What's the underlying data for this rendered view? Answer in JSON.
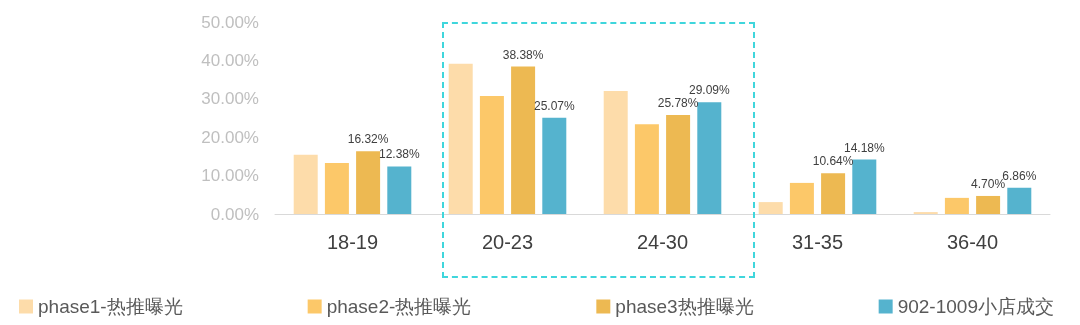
{
  "chart_data": {
    "type": "bar",
    "categories": [
      "18-19",
      "20-23",
      "24-30",
      "31-35",
      "36-40"
    ],
    "series": [
      {
        "name": "phase1-热推曝光",
        "color": "#fddcaa",
        "values": [
          15.4,
          39.1,
          32.0,
          3.1,
          0.5
        ]
      },
      {
        "name": "phase2-热推曝光",
        "color": "#fcc869",
        "values": [
          13.3,
          30.7,
          23.4,
          8.1,
          4.2
        ]
      },
      {
        "name": "phase3热推曝光",
        "color": "#edb952",
        "values": [
          16.32,
          38.38,
          25.78,
          10.64,
          4.7
        ],
        "value_labels": [
          "16.32%",
          "38.38%",
          "25.78%",
          "10.64%",
          "4.70%"
        ]
      },
      {
        "name": "902-1009小店成交",
        "color": "#55b3ce",
        "values": [
          12.38,
          25.07,
          29.09,
          14.18,
          6.86
        ],
        "value_labels": [
          "12.38%",
          "25.07%",
          "29.09%",
          "14.18%",
          "6.86%"
        ]
      }
    ],
    "ylim": [
      0,
      50
    ],
    "yticks": [
      {
        "value": 0,
        "label": "0.00%"
      },
      {
        "value": 10,
        "label": "10.00%"
      },
      {
        "value": 20,
        "label": "20.00%"
      },
      {
        "value": 30,
        "label": "30.00%"
      },
      {
        "value": 40,
        "label": "40.00%"
      },
      {
        "value": 50,
        "label": "50.00%"
      }
    ],
    "grid": false,
    "legend": "bottom"
  }
}
